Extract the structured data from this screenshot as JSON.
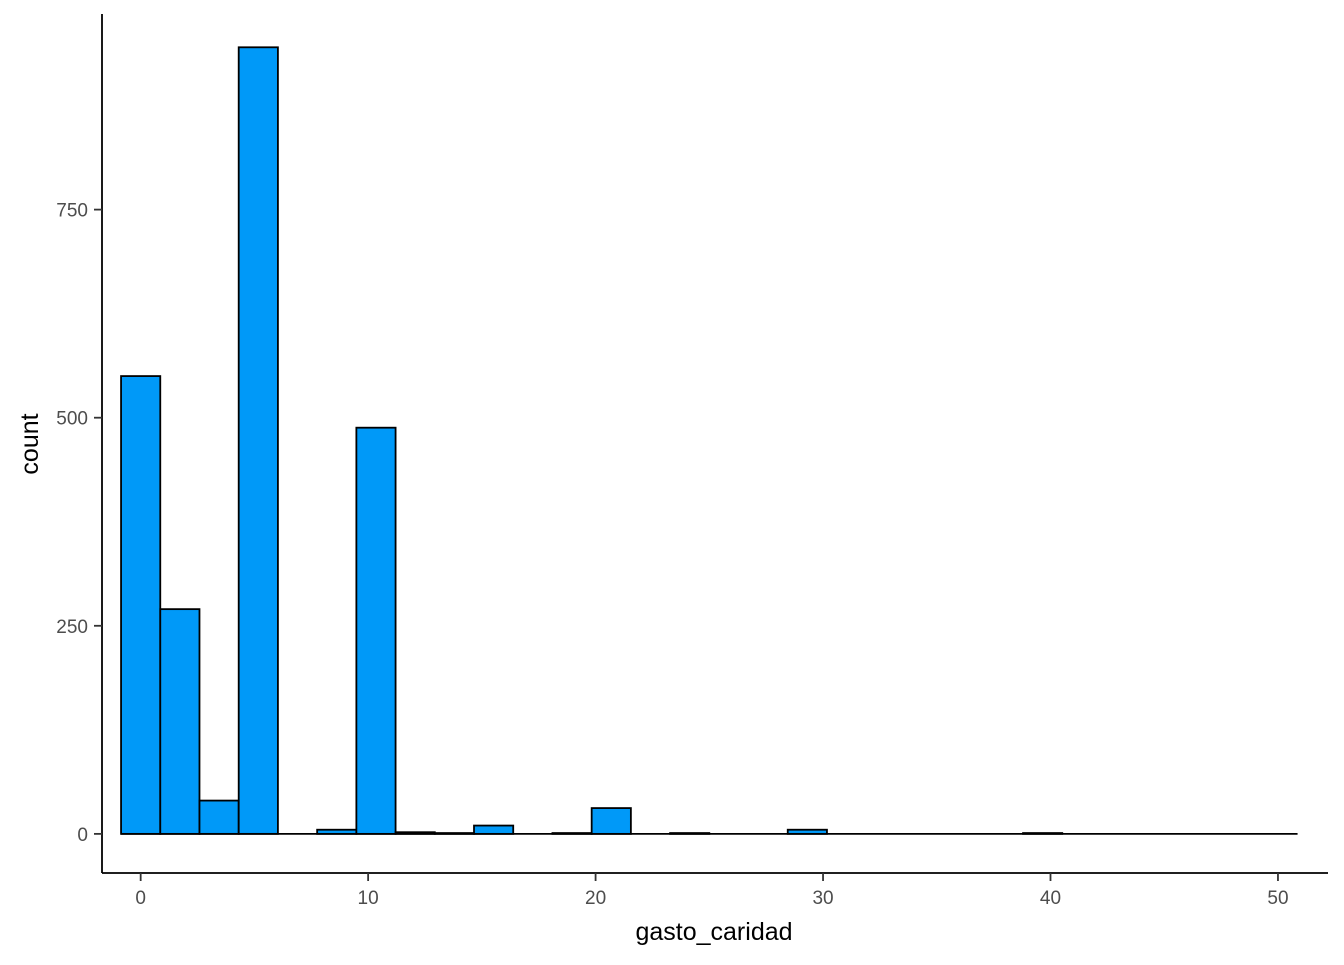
{
  "chart_data": {
    "type": "bar",
    "subtype": "histogram",
    "xlabel": "gasto_caridad",
    "ylabel": "count",
    "xlim": [
      -1.7,
      52.2
    ],
    "ylim": [
      -47,
      985
    ],
    "x_ticks": [
      0,
      10,
      20,
      30,
      40,
      50
    ],
    "y_ticks": [
      0,
      250,
      500,
      750
    ],
    "bin_width": 1.724,
    "bins": [
      {
        "x0": -0.862,
        "x1": 0.862,
        "count": 550
      },
      {
        "x0": 0.862,
        "x1": 2.586,
        "count": 270
      },
      {
        "x0": 2.586,
        "x1": 4.31,
        "count": 40
      },
      {
        "x0": 4.31,
        "x1": 6.034,
        "count": 945
      },
      {
        "x0": 6.034,
        "x1": 7.759,
        "count": 0
      },
      {
        "x0": 7.759,
        "x1": 9.483,
        "count": 5
      },
      {
        "x0": 9.483,
        "x1": 11.207,
        "count": 488
      },
      {
        "x0": 11.207,
        "x1": 12.931,
        "count": 2
      },
      {
        "x0": 12.931,
        "x1": 14.655,
        "count": 1
      },
      {
        "x0": 14.655,
        "x1": 16.379,
        "count": 10
      },
      {
        "x0": 16.379,
        "x1": 18.103,
        "count": 0
      },
      {
        "x0": 18.103,
        "x1": 19.828,
        "count": 1
      },
      {
        "x0": 19.828,
        "x1": 21.552,
        "count": 31
      },
      {
        "x0": 21.552,
        "x1": 23.276,
        "count": 0
      },
      {
        "x0": 23.276,
        "x1": 25.0,
        "count": 1
      },
      {
        "x0": 25.0,
        "x1": 26.724,
        "count": 0
      },
      {
        "x0": 26.724,
        "x1": 28.448,
        "count": 0
      },
      {
        "x0": 28.448,
        "x1": 30.172,
        "count": 5
      },
      {
        "x0": 30.172,
        "x1": 31.897,
        "count": 0
      },
      {
        "x0": 31.897,
        "x1": 33.621,
        "count": 0
      },
      {
        "x0": 33.621,
        "x1": 35.345,
        "count": 0
      },
      {
        "x0": 35.345,
        "x1": 37.069,
        "count": 0
      },
      {
        "x0": 37.069,
        "x1": 38.793,
        "count": 0
      },
      {
        "x0": 38.793,
        "x1": 40.517,
        "count": 1
      },
      {
        "x0": 40.517,
        "x1": 42.241,
        "count": 0
      },
      {
        "x0": 42.241,
        "x1": 43.966,
        "count": 0
      },
      {
        "x0": 43.966,
        "x1": 45.69,
        "count": 0
      },
      {
        "x0": 45.69,
        "x1": 47.414,
        "count": 0
      },
      {
        "x0": 47.414,
        "x1": 49.138,
        "count": 0
      },
      {
        "x0": 49.138,
        "x1": 50.862,
        "count": 0
      }
    ],
    "fill_color": "#0099f8",
    "outline_color": "#000000",
    "grid": false
  }
}
